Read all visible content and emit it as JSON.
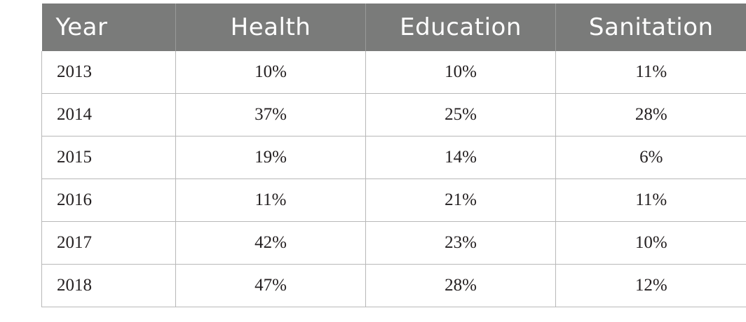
{
  "table": {
    "headers": [
      "Year",
      "Health",
      "Education",
      "Sanitation"
    ],
    "rows": [
      [
        "2013",
        "10%",
        "10%",
        "11%"
      ],
      [
        "2014",
        "37%",
        "25%",
        "28%"
      ],
      [
        "2015",
        "19%",
        "14%",
        "6%"
      ],
      [
        "2016",
        "11%",
        "21%",
        "11%"
      ],
      [
        "2017",
        "42%",
        "23%",
        "10%"
      ],
      [
        "2018",
        "47%",
        "28%",
        "12%"
      ]
    ]
  },
  "colors": {
    "header_background": "#7a7b7a",
    "header_text": "#ffffff",
    "body_text": "#231f20",
    "grid_lines": "#b8b8b8"
  }
}
